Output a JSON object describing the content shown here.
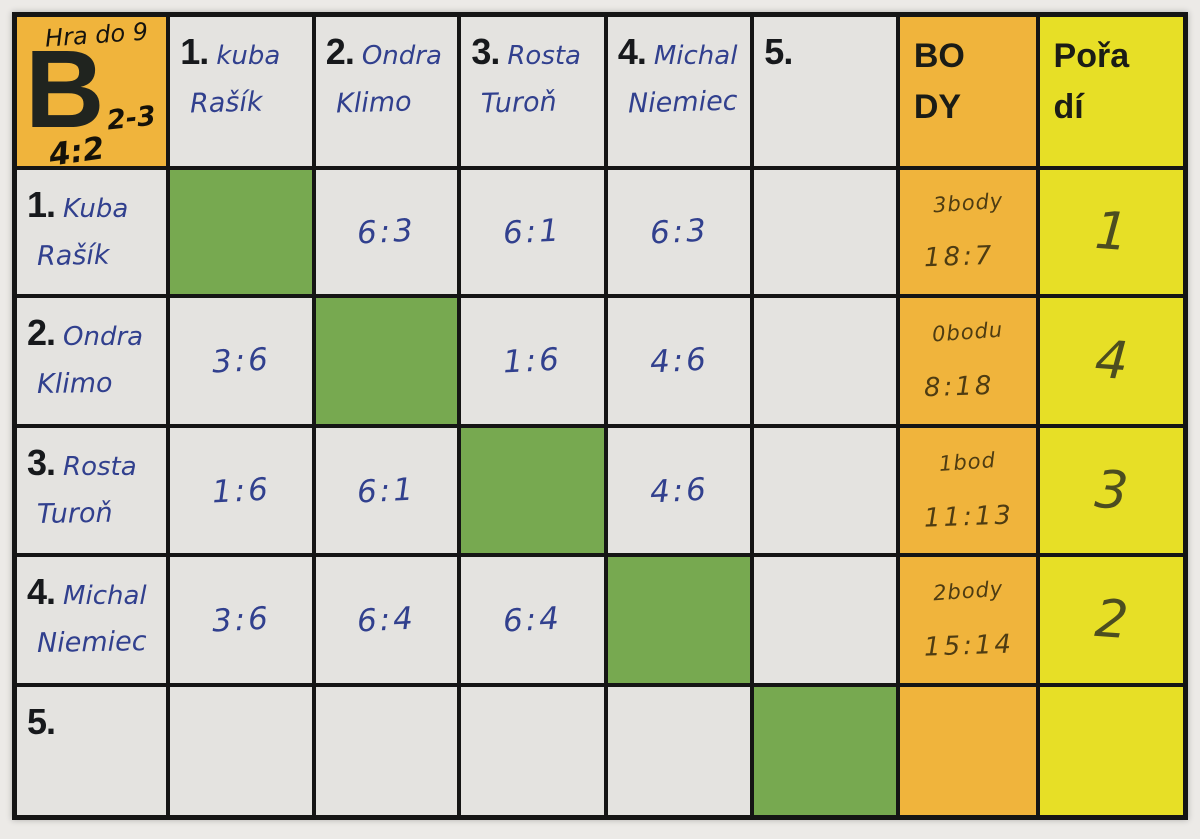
{
  "corner": {
    "note": "Hra do 9",
    "group_letter": "B",
    "sup_note": "2-3",
    "sub_note": "4:2"
  },
  "columns": {
    "players": [
      {
        "num": "1.",
        "first": "kuba",
        "last": "Rašík"
      },
      {
        "num": "2.",
        "first": "Ondra",
        "last": "Klimo"
      },
      {
        "num": "3.",
        "first": "Rosta",
        "last": "Turoň"
      },
      {
        "num": "4.",
        "first": "Michal",
        "last": "Niemiec"
      },
      {
        "num": "5.",
        "first": "",
        "last": ""
      }
    ],
    "points_label": "BODY",
    "rank_label": "Pořadí"
  },
  "rows": [
    {
      "num": "1.",
      "first": "Kuba",
      "last": "Rašík",
      "scores": [
        "",
        "6:3",
        "6:1",
        "6:3",
        ""
      ],
      "points": "3body",
      "games": "18:7",
      "rank": "1"
    },
    {
      "num": "2.",
      "first": "Ondra",
      "last": "Klimo",
      "scores": [
        "3:6",
        "",
        "1:6",
        "4:6",
        ""
      ],
      "points": "0bodu",
      "games": "8:18",
      "rank": "4"
    },
    {
      "num": "3.",
      "first": "Rosta",
      "last": "Turoň",
      "scores": [
        "1:6",
        "6:1",
        "",
        "4:6",
        ""
      ],
      "points": "1bod",
      "games": "11:13",
      "rank": "3"
    },
    {
      "num": "4.",
      "first": "Michal",
      "last": "Niemiec",
      "scores": [
        "3:6",
        "6:4",
        "6:4",
        "",
        ""
      ],
      "points": "2body",
      "games": "15:14",
      "rank": "2"
    },
    {
      "num": "5.",
      "first": "",
      "last": "",
      "scores": [
        "",
        "",
        "",
        "",
        ""
      ],
      "points": "",
      "games": "",
      "rank": ""
    }
  ],
  "colors": {
    "orange": "#f0b43c",
    "yellow": "#e7df26",
    "green": "#77a950",
    "cell_white": "#e4e3e0",
    "grid_black": "#151515",
    "ink_blue": "#31408e",
    "ink_brown": "#4e3c12",
    "ink_olive": "#4c4d20"
  }
}
